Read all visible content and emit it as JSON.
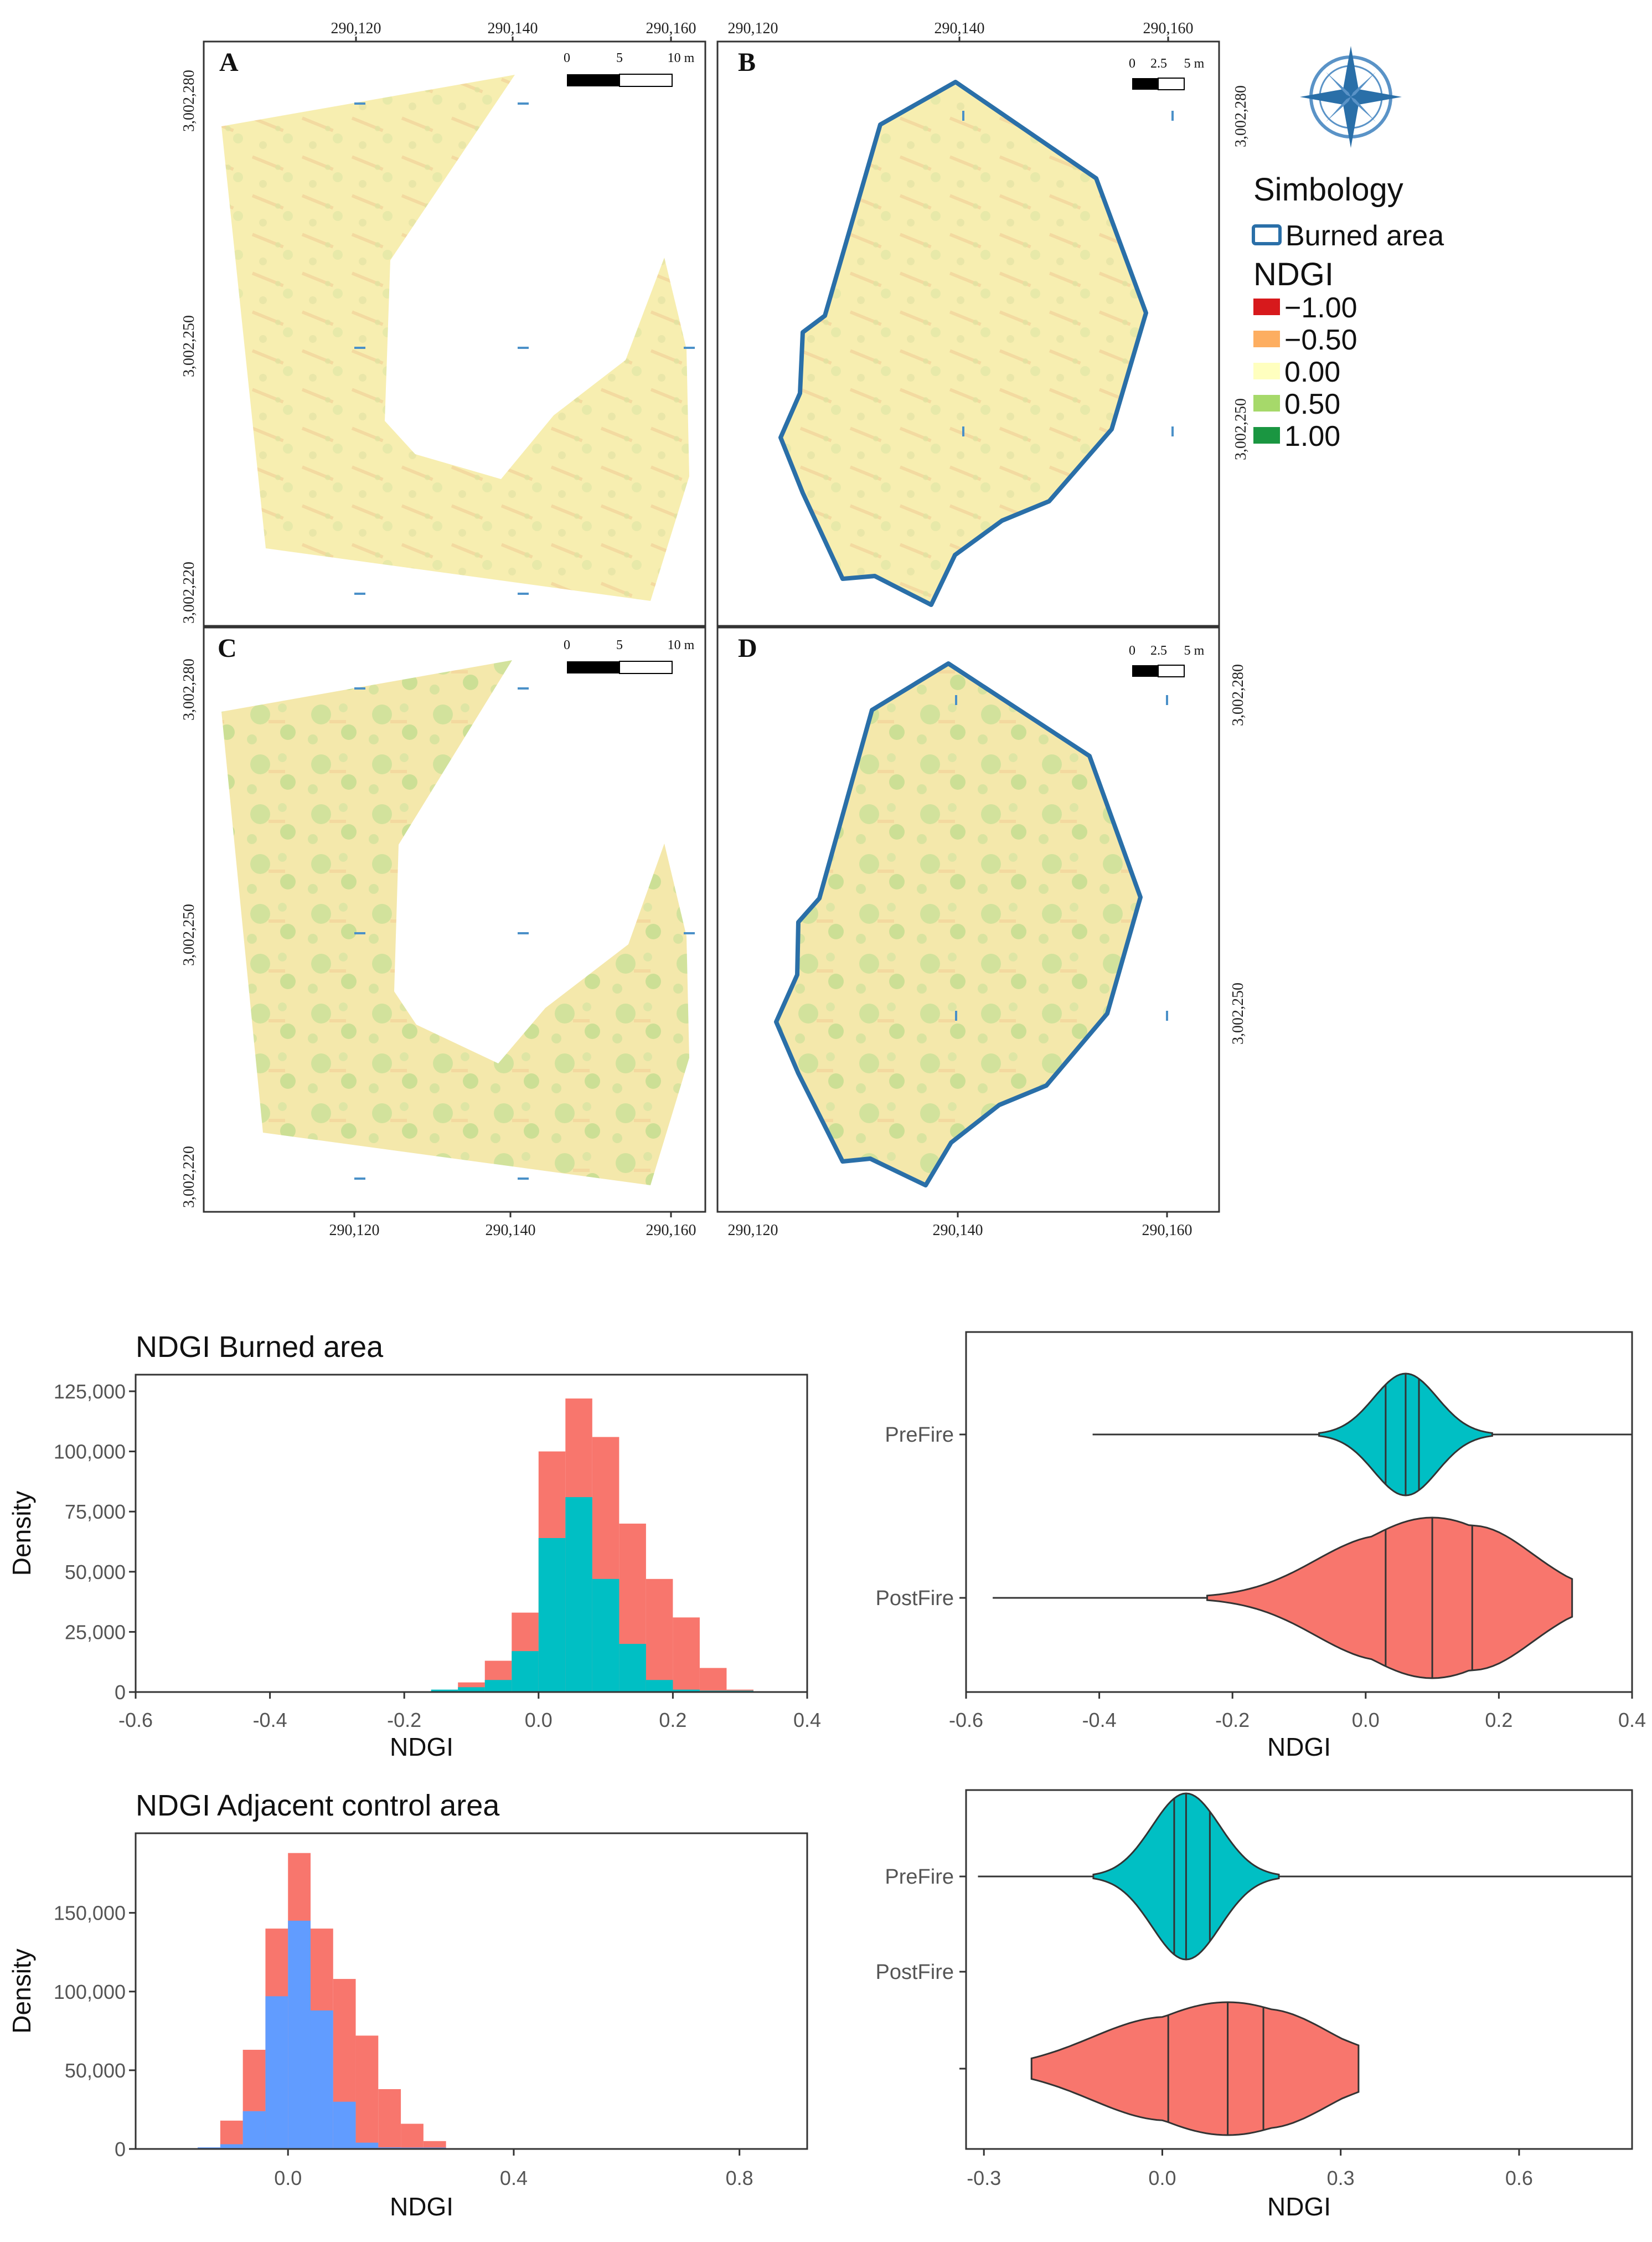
{
  "maps": {
    "panels": [
      {
        "letter": "A",
        "scalebar": [
          "0",
          "5",
          "10 m"
        ]
      },
      {
        "letter": "B",
        "scalebar": [
          "0",
          "2.5",
          "5 m"
        ]
      },
      {
        "letter": "C",
        "scalebar": [
          "0",
          "5",
          "10 m"
        ]
      },
      {
        "letter": "D",
        "scalebar": [
          "0",
          "2.5",
          "5 m"
        ]
      }
    ],
    "top_x_ticks_left": [
      "290,120",
      "290,140",
      "290,160"
    ],
    "top_x_ticks_right": [
      "290,120",
      "290,140",
      "290,160"
    ],
    "bottom_x_ticks_left": [
      "290,120",
      "290,140",
      "290,160"
    ],
    "bottom_x_ticks_right": [
      "290,120",
      "290,140",
      "290,160"
    ],
    "left_y_ticks": [
      "3,002,280",
      "3,002,250",
      "3,002,220"
    ],
    "right_y_ticks": [
      "3,002,280",
      "3,002,250"
    ],
    "colors": {
      "outline": "#2a6fa8",
      "bg_fill": "#f7eeb0",
      "green_patch": "#c8df98",
      "orange_streak": "#f1c98a"
    }
  },
  "legend": {
    "title": "Simbology",
    "burned_label": "Burned area",
    "ndgi_title": "NDGI",
    "items": [
      {
        "label": "−1.00",
        "color": "#d7191c"
      },
      {
        "label": "−0.50",
        "color": "#fdae61"
      },
      {
        "label": "0.00",
        "color": "#ffffbf"
      },
      {
        "label": "0.50",
        "color": "#a6d96a"
      },
      {
        "label": "1.00",
        "color": "#1a9641"
      }
    ],
    "compass_icon": "compass-rose-icon"
  },
  "chart_data": [
    {
      "type": "bar",
      "title": "NDGI Burned area",
      "xlabel": "NDGI",
      "ylabel": "Density",
      "xlim": [
        -0.6,
        0.4
      ],
      "ylim": [
        0,
        125000
      ],
      "xticks": [
        "-0.6",
        "-0.4",
        "-0.2",
        "0.0",
        "0.2",
        "0.4"
      ],
      "yticks": [
        "0",
        "25,000",
        "50,000",
        "75,000",
        "100,000",
        "125,000"
      ],
      "bin_width": 0.04,
      "series": [
        {
          "color": "#f8766d",
          "bins": [
            {
              "x": -0.16,
              "value": 0
            },
            {
              "x": -0.12,
              "value": 4000
            },
            {
              "x": -0.08,
              "value": 13000
            },
            {
              "x": -0.04,
              "value": 33000
            },
            {
              "x": 0.0,
              "value": 100000
            },
            {
              "x": 0.04,
              "value": 122000
            },
            {
              "x": 0.08,
              "value": 106000
            },
            {
              "x": 0.12,
              "value": 70000
            },
            {
              "x": 0.16,
              "value": 47000
            },
            {
              "x": 0.2,
              "value": 31000
            },
            {
              "x": 0.24,
              "value": 10000
            },
            {
              "x": 0.28,
              "value": 1000
            }
          ]
        },
        {
          "color": "#00bfc4",
          "bins": [
            {
              "x": -0.16,
              "value": 1000
            },
            {
              "x": -0.12,
              "value": 2000
            },
            {
              "x": -0.08,
              "value": 5000
            },
            {
              "x": -0.04,
              "value": 17000
            },
            {
              "x": 0.0,
              "value": 64000
            },
            {
              "x": 0.04,
              "value": 81000
            },
            {
              "x": 0.08,
              "value": 47000
            },
            {
              "x": 0.12,
              "value": 20000
            },
            {
              "x": 0.16,
              "value": 5000
            },
            {
              "x": 0.2,
              "value": 1000
            },
            {
              "x": 0.24,
              "value": 0
            },
            {
              "x": 0.28,
              "value": 0
            }
          ]
        }
      ]
    },
    {
      "type": "violin",
      "xlabel": "NDGI",
      "xlim": [
        -0.6,
        0.4
      ],
      "xticks": [
        "-0.6",
        "-0.4",
        "-0.2",
        "0.0",
        "0.2",
        "0.4"
      ],
      "categories": [
        "PreFire",
        "PostFire"
      ],
      "series": [
        {
          "category": "PreFire",
          "color": "#00bfc4",
          "range": [
            -0.41,
            0.4
          ],
          "quantiles": [
            0.03,
            0.06,
            0.08
          ]
        },
        {
          "category": "PostFire",
          "color": "#f8766d",
          "range": [
            -0.56,
            0.31
          ],
          "quantiles": [
            0.03,
            0.1,
            0.16
          ]
        }
      ]
    },
    {
      "type": "bar",
      "title": "NDGI Adjacent control area",
      "xlabel": "NDGI",
      "ylabel": "Density",
      "xlim": [
        -0.27,
        0.92
      ],
      "ylim": [
        0,
        190000
      ],
      "xticks": [
        "0.0",
        "0.4",
        "0.8"
      ],
      "yticks": [
        "0",
        "50,000",
        "100,000",
        "150,000"
      ],
      "bin_width": 0.04,
      "series": [
        {
          "color": "#f8766d",
          "bins": [
            {
              "x": -0.16,
              "value": 0
            },
            {
              "x": -0.12,
              "value": 18000
            },
            {
              "x": -0.08,
              "value": 63000
            },
            {
              "x": -0.04,
              "value": 140000
            },
            {
              "x": 0.0,
              "value": 188000
            },
            {
              "x": 0.04,
              "value": 140000
            },
            {
              "x": 0.08,
              "value": 108000
            },
            {
              "x": 0.12,
              "value": 72000
            },
            {
              "x": 0.16,
              "value": 38000
            },
            {
              "x": 0.2,
              "value": 16000
            },
            {
              "x": 0.24,
              "value": 5000
            }
          ]
        },
        {
          "color": "#619cff",
          "bins": [
            {
              "x": -0.16,
              "value": 1000
            },
            {
              "x": -0.12,
              "value": 3000
            },
            {
              "x": -0.08,
              "value": 24000
            },
            {
              "x": -0.04,
              "value": 97000
            },
            {
              "x": 0.0,
              "value": 145000
            },
            {
              "x": 0.04,
              "value": 88000
            },
            {
              "x": 0.08,
              "value": 30000
            },
            {
              "x": 0.12,
              "value": 4000
            },
            {
              "x": 0.16,
              "value": 1000
            },
            {
              "x": 0.2,
              "value": 0
            },
            {
              "x": 0.24,
              "value": 0
            }
          ]
        }
      ]
    },
    {
      "type": "violin",
      "xlabel": "NDGI",
      "xlim": [
        -0.33,
        0.79
      ],
      "xticks": [
        "-0.3",
        "0.0",
        "0.3",
        "0.6"
      ],
      "categories": [
        "PreFire",
        "PostFire",
        ""
      ],
      "series": [
        {
          "category": "PreFire",
          "color": "#00bfc4",
          "range": [
            -0.31,
            0.79
          ],
          "quantiles": [
            0.02,
            0.04,
            0.08
          ]
        },
        {
          "category": "",
          "color": "#f8766d",
          "range": [
            -0.22,
            0.33
          ],
          "quantiles": [
            0.01,
            0.11,
            0.17
          ]
        }
      ]
    }
  ]
}
